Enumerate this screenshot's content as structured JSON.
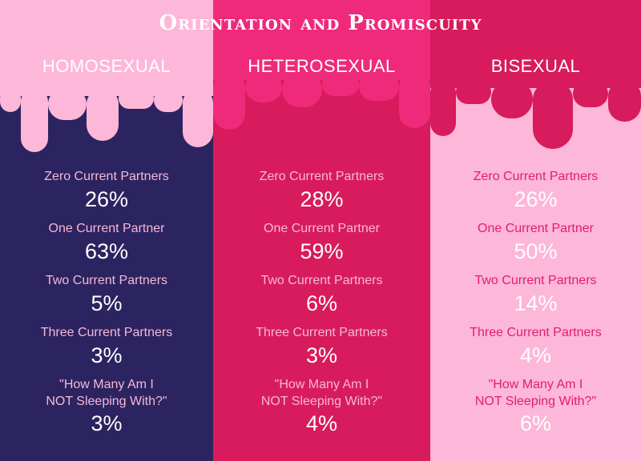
{
  "title": "Orientation and Promiscuity",
  "colors": {
    "homosexual_bg": "#2b2460",
    "heterosexual_bg": "#d81b5c",
    "bisexual_bg": "#fdb7d8",
    "drip_light_pink": "#fdb7d8",
    "drip_hot_pink": "#ef2a7a",
    "drip_dark_pink": "#d81b5c"
  },
  "chart_data": {
    "type": "table",
    "title": "Orientation and Promiscuity",
    "columns": [
      "HOMOSEXUAL",
      "HETEROSEXUAL",
      "BISEXUAL"
    ],
    "rows": [
      {
        "label": "Zero Current Partners",
        "values": [
          "26%",
          "28%",
          "26%"
        ]
      },
      {
        "label": "One Current Partner",
        "values": [
          "63%",
          "59%",
          "50%"
        ]
      },
      {
        "label": "Two Current Partners",
        "values": [
          "5%",
          "6%",
          "14%"
        ]
      },
      {
        "label": "Three Current Partners",
        "values": [
          "3%",
          "3%",
          "4%"
        ]
      },
      {
        "label_lines": [
          "\"How Many Am I",
          "NOT Sleeping With?\""
        ],
        "values": [
          "3%",
          "4%",
          "6%"
        ]
      }
    ]
  }
}
